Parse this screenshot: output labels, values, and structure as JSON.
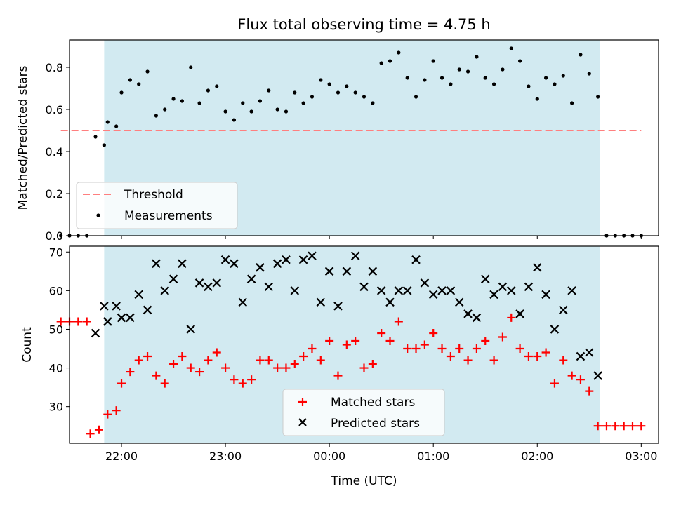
{
  "chart_data": {
    "title": "Flux total observing time = 4.75 h",
    "xlabel": "Time (UTC)",
    "x_ticks": [
      "22:00",
      "23:00",
      "00:00",
      "01:00",
      "02:00",
      "03:00"
    ],
    "x_range": [
      "21:30",
      "03:10"
    ],
    "shaded_interval": [
      "21:50",
      "02:36"
    ],
    "shade_color": "#add8e6",
    "panels": [
      {
        "type": "scatter",
        "ylabel": "Matched/Predicted stars",
        "ylim": [
          0,
          0.93
        ],
        "y_ticks": [
          0.0,
          0.2,
          0.4,
          0.6,
          0.8
        ],
        "legend_position": "lower-left",
        "threshold": {
          "name": "Threshold",
          "value": 0.5,
          "x_start": "21:25",
          "x_end": "03:00",
          "color": "#ff7f7f"
        },
        "series": [
          {
            "name": "Measurements",
            "color": "#000000",
            "points": [
              [
                "21:25",
                0.0
              ],
              [
                "21:30",
                0.0
              ],
              [
                "21:35",
                0.0
              ],
              [
                "21:40",
                0.0
              ],
              [
                "21:45",
                0.47
              ],
              [
                "21:50",
                0.43
              ],
              [
                "21:52",
                0.54
              ],
              [
                "21:57",
                0.52
              ],
              [
                "22:00",
                0.68
              ],
              [
                "22:05",
                0.74
              ],
              [
                "22:10",
                0.72
              ],
              [
                "22:15",
                0.78
              ],
              [
                "22:20",
                0.57
              ],
              [
                "22:25",
                0.6
              ],
              [
                "22:30",
                0.65
              ],
              [
                "22:35",
                0.64
              ],
              [
                "22:40",
                0.8
              ],
              [
                "22:45",
                0.63
              ],
              [
                "22:50",
                0.69
              ],
              [
                "22:55",
                0.71
              ],
              [
                "23:00",
                0.59
              ],
              [
                "23:05",
                0.55
              ],
              [
                "23:10",
                0.63
              ],
              [
                "23:15",
                0.59
              ],
              [
                "23:20",
                0.64
              ],
              [
                "23:25",
                0.69
              ],
              [
                "23:30",
                0.6
              ],
              [
                "23:35",
                0.59
              ],
              [
                "23:40",
                0.68
              ],
              [
                "23:45",
                0.63
              ],
              [
                "23:50",
                0.66
              ],
              [
                "23:55",
                0.74
              ],
              [
                "00:00",
                0.72
              ],
              [
                "00:05",
                0.68
              ],
              [
                "00:10",
                0.71
              ],
              [
                "00:15",
                0.68
              ],
              [
                "00:20",
                0.66
              ],
              [
                "00:25",
                0.63
              ],
              [
                "00:30",
                0.82
              ],
              [
                "00:35",
                0.83
              ],
              [
                "00:40",
                0.87
              ],
              [
                "00:45",
                0.75
              ],
              [
                "00:50",
                0.66
              ],
              [
                "00:55",
                0.74
              ],
              [
                "01:00",
                0.83
              ],
              [
                "01:05",
                0.75
              ],
              [
                "01:10",
                0.72
              ],
              [
                "01:15",
                0.79
              ],
              [
                "01:20",
                0.78
              ],
              [
                "01:25",
                0.85
              ],
              [
                "01:30",
                0.75
              ],
              [
                "01:35",
                0.72
              ],
              [
                "01:40",
                0.79
              ],
              [
                "01:45",
                0.89
              ],
              [
                "01:50",
                0.83
              ],
              [
                "01:55",
                0.71
              ],
              [
                "02:00",
                0.65
              ],
              [
                "02:05",
                0.75
              ],
              [
                "02:10",
                0.72
              ],
              [
                "02:15",
                0.76
              ],
              [
                "02:20",
                0.63
              ],
              [
                "02:25",
                0.86
              ],
              [
                "02:30",
                0.77
              ],
              [
                "02:35",
                0.66
              ],
              [
                "02:40",
                0.0
              ],
              [
                "02:45",
                0.0
              ],
              [
                "02:50",
                0.0
              ],
              [
                "02:55",
                0.0
              ],
              [
                "03:00",
                0.0
              ]
            ]
          }
        ]
      },
      {
        "type": "scatter",
        "ylabel": "Count",
        "ylim": [
          20.5,
          71.5
        ],
        "y_ticks": [
          30,
          40,
          50,
          60,
          70
        ],
        "legend_position": "lower-center",
        "series": [
          {
            "name": "Matched stars",
            "marker": "+",
            "color": "#ff0000",
            "points": [
              [
                "21:25",
                52
              ],
              [
                "21:30",
                52
              ],
              [
                "21:35",
                52
              ],
              [
                "21:40",
                52
              ],
              [
                "21:42",
                23
              ],
              [
                "21:47",
                24
              ],
              [
                "21:52",
                28
              ],
              [
                "21:57",
                29
              ],
              [
                "22:00",
                36
              ],
              [
                "22:05",
                39
              ],
              [
                "22:10",
                42
              ],
              [
                "22:15",
                43
              ],
              [
                "22:20",
                38
              ],
              [
                "22:25",
                36
              ],
              [
                "22:30",
                41
              ],
              [
                "22:35",
                43
              ],
              [
                "22:40",
                40
              ],
              [
                "22:45",
                39
              ],
              [
                "22:50",
                42
              ],
              [
                "22:55",
                44
              ],
              [
                "23:00",
                40
              ],
              [
                "23:05",
                37
              ],
              [
                "23:10",
                36
              ],
              [
                "23:15",
                37
              ],
              [
                "23:20",
                42
              ],
              [
                "23:25",
                42
              ],
              [
                "23:30",
                40
              ],
              [
                "23:35",
                40
              ],
              [
                "23:40",
                41
              ],
              [
                "23:45",
                43
              ],
              [
                "23:50",
                45
              ],
              [
                "23:55",
                42
              ],
              [
                "00:00",
                47
              ],
              [
                "00:05",
                38
              ],
              [
                "00:10",
                46
              ],
              [
                "00:15",
                47
              ],
              [
                "00:20",
                40
              ],
              [
                "00:25",
                41
              ],
              [
                "00:30",
                49
              ],
              [
                "00:35",
                47
              ],
              [
                "00:40",
                52
              ],
              [
                "00:45",
                45
              ],
              [
                "00:50",
                45
              ],
              [
                "00:55",
                46
              ],
              [
                "01:00",
                49
              ],
              [
                "01:05",
                45
              ],
              [
                "01:10",
                43
              ],
              [
                "01:15",
                45
              ],
              [
                "01:20",
                42
              ],
              [
                "01:25",
                45
              ],
              [
                "01:30",
                47
              ],
              [
                "01:35",
                42
              ],
              [
                "01:40",
                48
              ],
              [
                "01:45",
                53
              ],
              [
                "01:50",
                45
              ],
              [
                "01:55",
                43
              ],
              [
                "02:00",
                43
              ],
              [
                "02:05",
                44
              ],
              [
                "02:10",
                36
              ],
              [
                "02:15",
                42
              ],
              [
                "02:20",
                38
              ],
              [
                "02:25",
                37
              ],
              [
                "02:30",
                34
              ],
              [
                "02:35",
                25
              ],
              [
                "02:40",
                25
              ],
              [
                "02:45",
                25
              ],
              [
                "02:50",
                25
              ],
              [
                "02:55",
                25
              ],
              [
                "03:00",
                25
              ]
            ]
          },
          {
            "name": "Predicted stars",
            "marker": "x",
            "color": "#000000",
            "points": [
              [
                "21:45",
                49
              ],
              [
                "21:50",
                56
              ],
              [
                "21:52",
                52
              ],
              [
                "21:57",
                56
              ],
              [
                "22:00",
                53
              ],
              [
                "22:05",
                53
              ],
              [
                "22:10",
                59
              ],
              [
                "22:15",
                55
              ],
              [
                "22:20",
                67
              ],
              [
                "22:25",
                60
              ],
              [
                "22:30",
                63
              ],
              [
                "22:35",
                67
              ],
              [
                "22:40",
                50
              ],
              [
                "22:45",
                62
              ],
              [
                "22:50",
                61
              ],
              [
                "22:55",
                62
              ],
              [
                "23:00",
                68
              ],
              [
                "23:05",
                67
              ],
              [
                "23:10",
                57
              ],
              [
                "23:15",
                63
              ],
              [
                "23:20",
                66
              ],
              [
                "23:25",
                61
              ],
              [
                "23:30",
                67
              ],
              [
                "23:35",
                68
              ],
              [
                "23:40",
                60
              ],
              [
                "23:45",
                68
              ],
              [
                "23:50",
                69
              ],
              [
                "23:55",
                57
              ],
              [
                "00:00",
                65
              ],
              [
                "00:05",
                56
              ],
              [
                "00:10",
                65
              ],
              [
                "00:15",
                69
              ],
              [
                "00:20",
                61
              ],
              [
                "00:25",
                65
              ],
              [
                "00:30",
                60
              ],
              [
                "00:35",
                57
              ],
              [
                "00:40",
                60
              ],
              [
                "00:45",
                60
              ],
              [
                "00:50",
                68
              ],
              [
                "00:55",
                62
              ],
              [
                "01:00",
                59
              ],
              [
                "01:05",
                60
              ],
              [
                "01:10",
                60
              ],
              [
                "01:15",
                57
              ],
              [
                "01:20",
                54
              ],
              [
                "01:25",
                53
              ],
              [
                "01:30",
                63
              ],
              [
                "01:35",
                59
              ],
              [
                "01:40",
                61
              ],
              [
                "01:45",
                60
              ],
              [
                "01:50",
                54
              ],
              [
                "01:55",
                61
              ],
              [
                "02:00",
                66
              ],
              [
                "02:05",
                59
              ],
              [
                "02:10",
                50
              ],
              [
                "02:15",
                55
              ],
              [
                "02:20",
                60
              ],
              [
                "02:25",
                43
              ],
              [
                "02:30",
                44
              ],
              [
                "02:35",
                38
              ]
            ]
          }
        ]
      }
    ]
  }
}
